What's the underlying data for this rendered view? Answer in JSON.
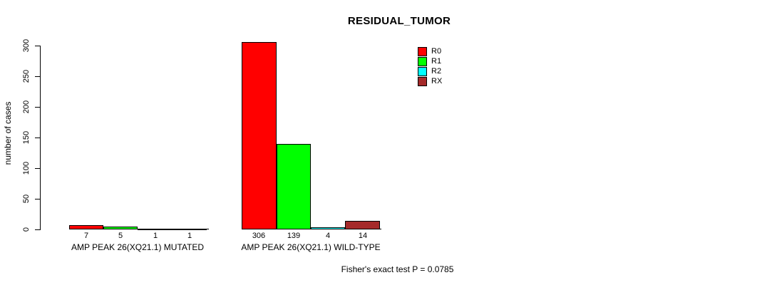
{
  "chart_data": {
    "type": "bar",
    "title": "RESIDUAL_TUMOR",
    "ylabel": "number of cases",
    "xlabel": "",
    "ylim": [
      0,
      300
    ],
    "yticks": [
      0,
      50,
      100,
      150,
      200,
      250,
      300
    ],
    "grid": false,
    "legend_position": "top-right-inside",
    "categories": [
      "AMP PEAK 26(XQ21.1) MUTATED",
      "AMP PEAK 26(XQ21.1) WILD-TYPE"
    ],
    "series": [
      {
        "name": "R0",
        "color": "#FF0000",
        "values": [
          7,
          306
        ]
      },
      {
        "name": "R1",
        "color": "#00FF00",
        "values": [
          5,
          139
        ]
      },
      {
        "name": "R2",
        "color": "#00FFFF",
        "values": [
          1,
          4
        ]
      },
      {
        "name": "RX",
        "color": "#A52A2A",
        "values": [
          1,
          14
        ]
      }
    ],
    "value_labels_shown": true,
    "annotation": "Fisher's exact test P = 0.0785"
  },
  "colors": {
    "background": "#FFFFFF",
    "axis": "#000000",
    "text": "#000000"
  }
}
